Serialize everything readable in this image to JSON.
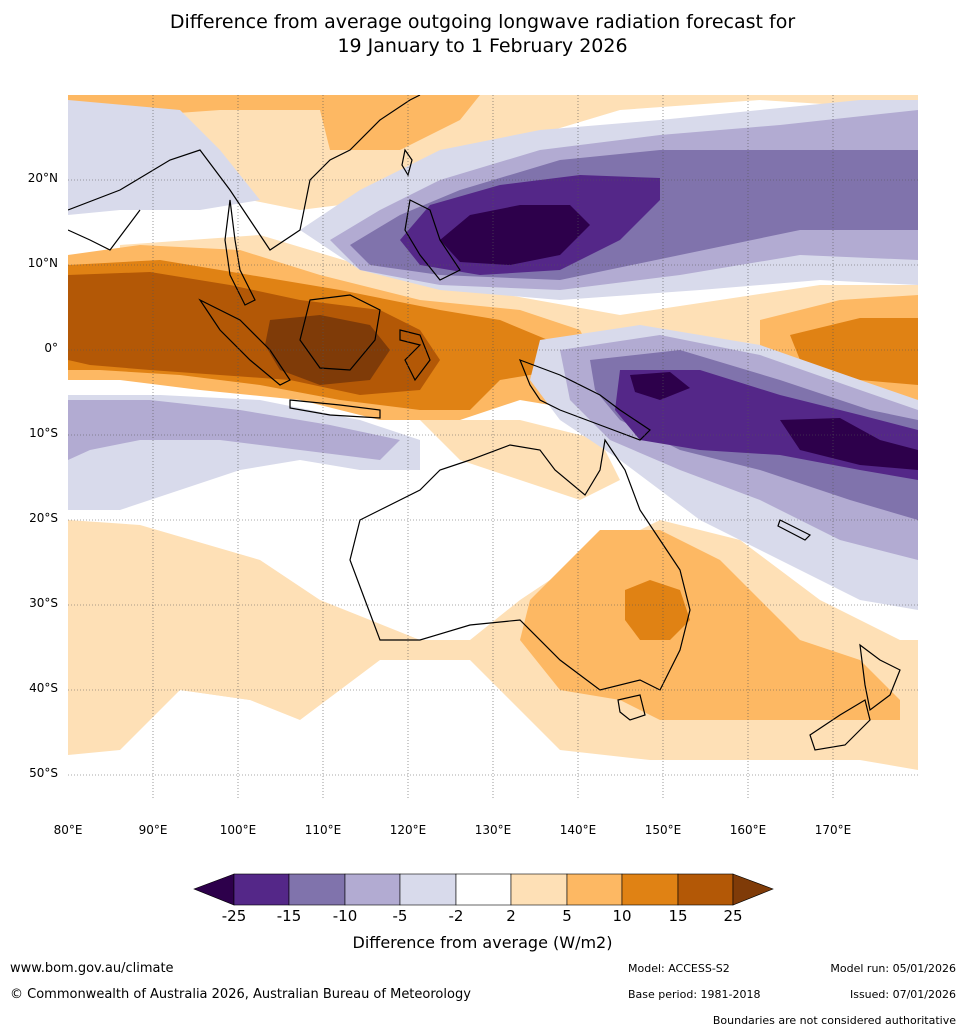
{
  "title": {
    "line1": "Difference from average outgoing longwave radiation forecast for",
    "line2": "19 January to 1 February 2026"
  },
  "map": {
    "extent": {
      "lon_min": 80,
      "lon_max": 180,
      "lat_min": -55,
      "lat_max": 30
    },
    "lat_ticks": [
      {
        "lat": 20,
        "label": "20°N"
      },
      {
        "lat": 10,
        "label": "10°N"
      },
      {
        "lat": 0,
        "label": "0°"
      },
      {
        "lat": -10,
        "label": "10°S"
      },
      {
        "lat": -20,
        "label": "20°S"
      },
      {
        "lat": -30,
        "label": "30°S"
      },
      {
        "lat": -40,
        "label": "40°S"
      },
      {
        "lat": -50,
        "label": "50°S"
      }
    ],
    "lon_ticks": [
      {
        "lon": 80,
        "label": "80°E"
      },
      {
        "lon": 90,
        "label": "90°E"
      },
      {
        "lon": 100,
        "label": "100°E"
      },
      {
        "lon": 110,
        "label": "110°E"
      },
      {
        "lon": 120,
        "label": "120°E"
      },
      {
        "lon": 130,
        "label": "130°E"
      },
      {
        "lon": 140,
        "label": "140°E"
      },
      {
        "lon": 150,
        "label": "150°E"
      },
      {
        "lon": 160,
        "label": "160°E"
      },
      {
        "lon": 170,
        "label": "170°E"
      }
    ]
  },
  "colorbar": {
    "ticks": [
      "-25",
      "-15",
      "-10",
      "-5",
      "-2",
      "2",
      "5",
      "10",
      "15",
      "25"
    ],
    "colors": [
      "#2d004b",
      "#542788",
      "#8073ac",
      "#b2abd2",
      "#d8daeb",
      "#ffffff",
      "#fee0b6",
      "#fdb863",
      "#e08214",
      "#b35806",
      "#7f3b08"
    ],
    "title": "Difference from average (W/m2)"
  },
  "footer": {
    "website": "www.bom.gov.au/climate",
    "copyright": "© Commonwealth of Australia 2026, Australian Bureau of Meteorology",
    "model": "Model: ACCESS-S2",
    "base_period": "Base period: 1981-2018",
    "model_run": "Model run: 05/01/2026",
    "issued": "Issued: 07/01/2026",
    "disclaimer": "Boundaries are not considered authoritative"
  }
}
